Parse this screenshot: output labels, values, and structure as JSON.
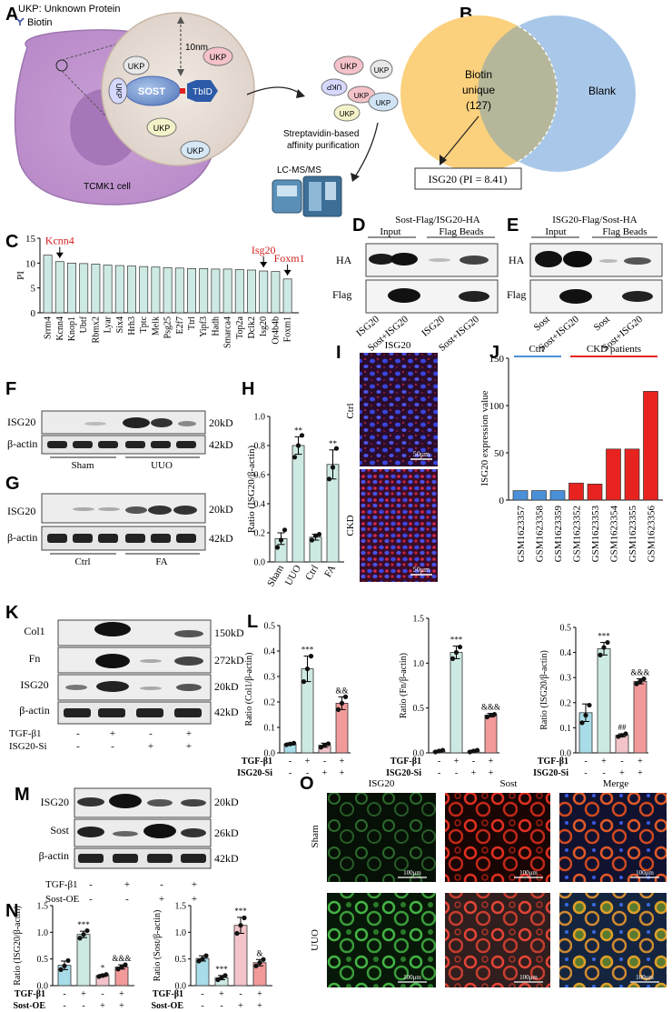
{
  "panels": {
    "A": {
      "letter": "A",
      "legend_ukp": "UKP: Unknown Protein",
      "legend_biotin": "Biotin",
      "distance": "10nm",
      "sost": "SOST",
      "tbid": "TbID",
      "ukp": "UKP",
      "cell": "TCMK1 cell",
      "purif1": "Streptavidin-based",
      "purif2": "affinity purification",
      "lcms": "LC-MS/MS"
    },
    "B": {
      "letter": "B",
      "biotin1": "Biotin",
      "biotin2": "unique",
      "biotin3": "(127)",
      "blank": "Blank",
      "result": "ISG20 (PI = 8.41)"
    },
    "C": {
      "letter": "C",
      "ylabel": "PI",
      "highlights": [
        "Kcnn4",
        "Isg20",
        "Foxm1"
      ]
    },
    "D": {
      "letter": "D",
      "title": "Sost-Flag/ISG20-HA",
      "input": "Input",
      "beads": "Flag Beads",
      "row1": "HA",
      "row2": "Flag",
      "lanes": [
        "ISG20",
        "Sost+ISG20",
        "ISG20",
        "Sost+ISG20"
      ]
    },
    "E": {
      "letter": "E",
      "title": "ISG20-Flag/Sost-HA",
      "input": "Input",
      "beads": "Flag Beads",
      "row1": "HA",
      "row2": "Flag",
      "lanes": [
        "Sost",
        "Sost+ISG20",
        "Sost",
        "Sost+ISG20"
      ]
    },
    "F": {
      "letter": "F",
      "row1": "ISG20",
      "row2": "β-actin",
      "kd1": "20kD",
      "kd2": "42kD",
      "g1": "Sham",
      "g2": "UUO"
    },
    "G": {
      "letter": "G",
      "row1": "ISG20",
      "row2": "β-actin",
      "kd1": "20kD",
      "kd2": "42kD",
      "g1": "Ctrl",
      "g2": "FA"
    },
    "H": {
      "letter": "H"
    },
    "I": {
      "letter": "I",
      "title": "ISG20",
      "row1": "Ctrl",
      "row2": "CKD",
      "scale": "50μm"
    },
    "J": {
      "letter": "J",
      "g1": "Ctrl",
      "g2": "CKD patients"
    },
    "K": {
      "letter": "K",
      "rows": [
        "Col1",
        "Fn",
        "ISG20",
        "β-actin"
      ],
      "kds": [
        "150kD",
        "272kD",
        "20kD",
        "42kD"
      ],
      "t1": "TGF-β1",
      "t2": "ISG20-Si",
      "t1v": [
        "-",
        "+",
        "-",
        "+"
      ],
      "t2v": [
        "-",
        "-",
        "+",
        "+"
      ]
    },
    "L": {
      "letter": "L",
      "t1": "TGF-β1",
      "t2": "ISG20-Si",
      "t1v": [
        "-",
        "+",
        "-",
        "+"
      ],
      "t2v": [
        "-",
        "-",
        "+",
        "+"
      ]
    },
    "M": {
      "letter": "M",
      "rows": [
        "ISG20",
        "Sost",
        "β-actin"
      ],
      "kds": [
        "20kD",
        "26kD",
        "42kD"
      ],
      "t1": "TGF-β1",
      "t2": "Sost-OE",
      "t1v": [
        "-",
        "+",
        "-",
        "+"
      ],
      "t2v": [
        "-",
        "-",
        "+",
        "+"
      ]
    },
    "N": {
      "letter": "N",
      "t1": "TGF-β1",
      "t2": "Sost-OE",
      "t1v": [
        "-",
        "+",
        "-",
        "+"
      ],
      "t2v": [
        "-",
        "-",
        "+",
        "+"
      ]
    },
    "O": {
      "letter": "O",
      "cols": [
        "ISG20",
        "Sost",
        "Merge"
      ],
      "rows": [
        "Sham",
        "UUO"
      ],
      "scale": "100μm"
    }
  },
  "chart_data": [
    {
      "id": "C",
      "type": "bar",
      "ylabel": "PI",
      "ylim": [
        0,
        15
      ],
      "yticks": [
        0,
        5,
        10,
        15
      ],
      "categories": [
        "Srrm4",
        "Kcnn4",
        "Knop1",
        "Ubtf",
        "Rbmx2",
        "Lyar",
        "Six4",
        "Hrh3",
        "Tptc",
        "Melk",
        "Psg25",
        "E2f7",
        "Ttrl",
        "Yipf3",
        "Hadh",
        "Smarca4",
        "Top2a",
        "Dclk2",
        "Isg20",
        "Or4b4b",
        "Foxm1"
      ],
      "values": [
        11.6,
        10.3,
        10.0,
        9.9,
        9.8,
        9.6,
        9.5,
        9.4,
        9.3,
        9.2,
        9.1,
        9.0,
        8.9,
        8.9,
        8.8,
        8.8,
        8.7,
        8.6,
        8.41,
        8.3,
        6.8
      ],
      "color": "#cde9e3"
    },
    {
      "id": "H",
      "type": "bar",
      "ylabel": "Ratio (ISG20/β-actin)",
      "ylim": [
        0,
        1.0
      ],
      "yticks": [
        "0.0",
        "0.2",
        "0.4",
        "0.6",
        "0.8",
        "1.0"
      ],
      "categories": [
        "Sham",
        "UUO",
        "Ctrl",
        "FA"
      ],
      "values": [
        0.16,
        0.8,
        0.17,
        0.67
      ],
      "errors": [
        0.04,
        0.06,
        0.02,
        0.1
      ],
      "points": [
        [
          0.1,
          0.15,
          0.22
        ],
        [
          0.72,
          0.8,
          0.87
        ],
        [
          0.15,
          0.18,
          0.19
        ],
        [
          0.57,
          0.65,
          0.78
        ]
      ],
      "sig": [
        "",
        "**",
        "",
        "**"
      ],
      "colors": [
        "#cde9e3",
        "#cde9e3",
        "#cde9e3",
        "#cde9e3"
      ]
    },
    {
      "id": "J",
      "type": "bar",
      "ylabel": "ISG20 expression value",
      "ylim": [
        0,
        150
      ],
      "yticks": [
        0,
        50,
        100,
        150
      ],
      "categories": [
        "GSM1623357",
        "GSM1623358",
        "GSM1623359",
        "GSM1623352",
        "GSM1623353",
        "GSM1623354",
        "GSM1623355",
        "GSM1623356"
      ],
      "values": [
        10,
        10,
        10,
        18,
        17,
        54,
        54,
        115
      ],
      "colors": [
        "#4a90d9",
        "#4a90d9",
        "#4a90d9",
        "#e8231f",
        "#e8231f",
        "#e8231f",
        "#e8231f",
        "#e8231f"
      ]
    },
    {
      "id": "L1",
      "type": "bar",
      "ylabel": "Ratio (Col1/β-actin)",
      "ylim": [
        0,
        0.5
      ],
      "yticks": [
        "0.0",
        "0.1",
        "0.2",
        "0.3",
        "0.4",
        "0.5"
      ],
      "values": [
        0.035,
        0.33,
        0.03,
        0.195
      ],
      "errors": [
        0.004,
        0.05,
        0.008,
        0.025
      ],
      "points": [
        [
          0.032,
          0.035,
          0.038
        ],
        [
          0.28,
          0.33,
          0.38
        ],
        [
          0.022,
          0.03,
          0.036
        ],
        [
          0.17,
          0.195,
          0.22
        ]
      ],
      "sig": [
        "",
        "***",
        "",
        "&&"
      ],
      "colors": [
        "#a8dce8",
        "#cde9e3",
        "#f2c4ca",
        "#f29a9a"
      ]
    },
    {
      "id": "L2",
      "type": "bar",
      "ylabel": "Ratio (Fn/β-actin)",
      "ylim": [
        0,
        1.5
      ],
      "yticks": [
        "0.0",
        "0.5",
        "1.0",
        "1.5"
      ],
      "values": [
        0.02,
        1.12,
        0.02,
        0.42
      ],
      "errors": [
        0.01,
        0.07,
        0.01,
        0.02
      ],
      "points": [
        [
          0.01,
          0.02,
          0.03
        ],
        [
          1.05,
          1.12,
          1.18
        ],
        [
          0.01,
          0.02,
          0.03
        ],
        [
          0.4,
          0.42,
          0.43
        ]
      ],
      "sig": [
        "",
        "***",
        "",
        "&&&"
      ],
      "colors": [
        "#a8dce8",
        "#cde9e3",
        "#f2c4ca",
        "#f29a9a"
      ]
    },
    {
      "id": "L3",
      "type": "bar",
      "ylabel": "Ratio (ISG20/β-actin)",
      "ylim": [
        0,
        0.5
      ],
      "yticks": [
        "0.0",
        "0.1",
        "0.2",
        "0.3",
        "0.4",
        "0.5"
      ],
      "values": [
        0.16,
        0.415,
        0.07,
        0.285
      ],
      "errors": [
        0.035,
        0.025,
        0.006,
        0.01
      ],
      "points": [
        [
          0.12,
          0.15,
          0.19
        ],
        [
          0.39,
          0.42,
          0.44
        ],
        [
          0.065,
          0.07,
          0.076
        ],
        [
          0.275,
          0.285,
          0.295
        ]
      ],
      "sig": [
        "",
        "***",
        "##",
        "&&&"
      ],
      "colors": [
        "#a8dce8",
        "#cde9e3",
        "#f2c4ca",
        "#f29a9a"
      ]
    },
    {
      "id": "N1",
      "type": "bar",
      "ylabel": "Ratio (ISG20/β-actin)",
      "ylim": [
        0,
        1.5
      ],
      "yticks": [
        "0.0",
        "0.5",
        "1.0",
        "1.5"
      ],
      "values": [
        0.38,
        0.96,
        0.19,
        0.35
      ],
      "errors": [
        0.08,
        0.06,
        0.02,
        0.04
      ],
      "points": [
        [
          0.3,
          0.37,
          0.47
        ],
        [
          0.89,
          0.96,
          1.03
        ],
        [
          0.17,
          0.19,
          0.21
        ],
        [
          0.31,
          0.35,
          0.39
        ]
      ],
      "sig": [
        "",
        "***",
        "*",
        "&&&"
      ],
      "colors": [
        "#a8dce8",
        "#cde9e3",
        "#f2c4ca",
        "#f29a9a"
      ]
    },
    {
      "id": "N2",
      "type": "bar",
      "ylabel": "Ratio (Sost/β-actin)",
      "ylim": [
        0,
        1.5
      ],
      "yticks": [
        "0.0",
        "0.5",
        "1.0",
        "1.5"
      ],
      "values": [
        0.51,
        0.15,
        1.13,
        0.43
      ],
      "errors": [
        0.05,
        0.04,
        0.15,
        0.06
      ],
      "points": [
        [
          0.46,
          0.5,
          0.56
        ],
        [
          0.11,
          0.15,
          0.19
        ],
        [
          0.98,
          1.13,
          1.27
        ],
        [
          0.37,
          0.43,
          0.49
        ]
      ],
      "sig": [
        "",
        "***",
        "***",
        "&"
      ],
      "colors": [
        "#a8dce8",
        "#cde9e3",
        "#f2c4ca",
        "#f29a9a"
      ]
    }
  ]
}
